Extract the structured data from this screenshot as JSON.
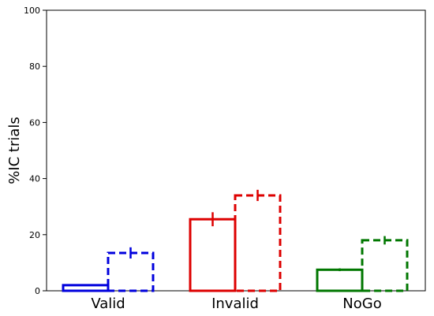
{
  "chart_data": {
    "type": "bar",
    "title": "",
    "xlabel": "",
    "ylabel": "%IC trials",
    "ylim": [
      0,
      100
    ],
    "yticks": [
      0,
      20,
      40,
      60,
      80,
      100
    ],
    "categories": [
      "Valid",
      "Invalid",
      "NoGo"
    ],
    "category_colors": [
      "#0000dd",
      "#dd0000",
      "#007700"
    ],
    "series": [
      {
        "style": "solid",
        "values": [
          2,
          25.5,
          7.5
        ],
        "errors": [
          0.3,
          2.5,
          0.5
        ]
      },
      {
        "style": "dashed",
        "values": [
          13.5,
          34,
          18
        ],
        "errors": [
          2.0,
          2.0,
          1.5
        ]
      }
    ],
    "grid": false,
    "legend": "none"
  }
}
